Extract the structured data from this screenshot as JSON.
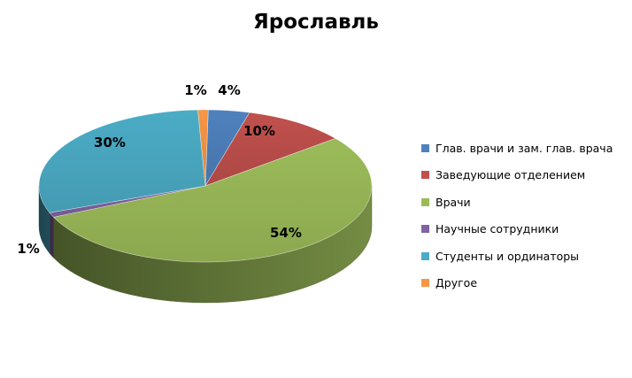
{
  "chart_data": {
    "type": "pie",
    "title": "Ярославль",
    "categories": [
      "Глав. врачи и зам. глав. врача",
      "Заведующие отделением",
      "Врачи",
      "Научные сотрудники",
      "Студенты и ординаторы",
      "Другое"
    ],
    "values": [
      4,
      10,
      54,
      1,
      30,
      1
    ],
    "data_labels": [
      "4%",
      "10%",
      "54%",
      "1%",
      "30%",
      "1%"
    ],
    "colors": [
      "#4F81BD",
      "#C0504D",
      "#9BBB59",
      "#8064A2",
      "#4BACC6",
      "#F79646"
    ],
    "legend_position": "right",
    "style": "3d-pie"
  }
}
